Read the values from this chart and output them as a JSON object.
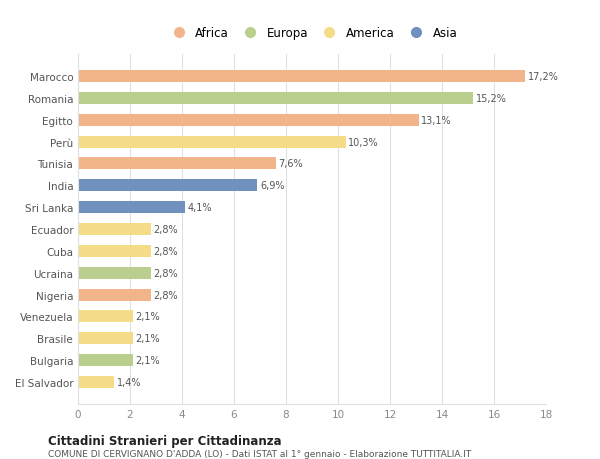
{
  "countries": [
    "Marocco",
    "Romania",
    "Egitto",
    "Perù",
    "Tunisia",
    "India",
    "Sri Lanka",
    "Ecuador",
    "Cuba",
    "Ucraina",
    "Nigeria",
    "Venezuela",
    "Brasile",
    "Bulgaria",
    "El Salvador"
  ],
  "values": [
    17.2,
    15.2,
    13.1,
    10.3,
    7.6,
    6.9,
    4.1,
    2.8,
    2.8,
    2.8,
    2.8,
    2.1,
    2.1,
    2.1,
    1.4
  ],
  "labels": [
    "17,2%",
    "15,2%",
    "13,1%",
    "10,3%",
    "7,6%",
    "6,9%",
    "4,1%",
    "2,8%",
    "2,8%",
    "2,8%",
    "2,8%",
    "2,1%",
    "2,1%",
    "2,1%",
    "1,4%"
  ],
  "continents": [
    "Africa",
    "Europa",
    "Africa",
    "America",
    "Africa",
    "Asia",
    "Asia",
    "America",
    "America",
    "Europa",
    "Africa",
    "America",
    "America",
    "Europa",
    "America"
  ],
  "colors": {
    "Africa": "#F2B48A",
    "Europa": "#BACF8E",
    "America": "#F5DC88",
    "Asia": "#7090C0"
  },
  "legend_order": [
    "Africa",
    "Europa",
    "America",
    "Asia"
  ],
  "title": "Cittadini Stranieri per Cittadinanza",
  "subtitle": "COMUNE DI CERVIGNANO D'ADDA (LO) - Dati ISTAT al 1° gennaio - Elaborazione TUTTITALIA.IT",
  "xlim": [
    0,
    18
  ],
  "xticks": [
    0,
    2,
    4,
    6,
    8,
    10,
    12,
    14,
    16,
    18
  ],
  "background_color": "#ffffff",
  "grid_color": "#e0e0e0"
}
